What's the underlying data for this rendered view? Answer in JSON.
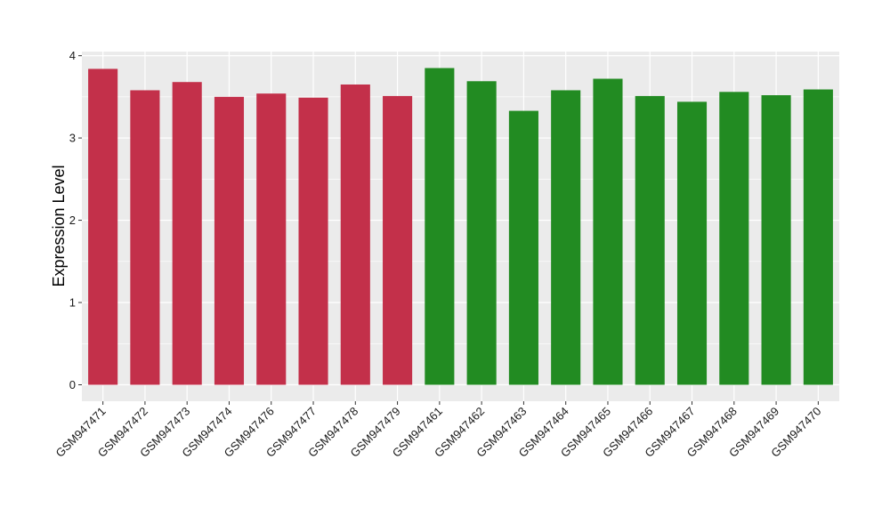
{
  "chart_data": {
    "type": "bar",
    "title": "",
    "xlabel": "",
    "ylabel": "Expression Level",
    "ylim": [
      -0.2,
      4.05
    ],
    "yticks": [
      0,
      1,
      2,
      3,
      4
    ],
    "grid": true,
    "legend": "none",
    "categories": [
      "GSM947471",
      "GSM947472",
      "GSM947473",
      "GSM947474",
      "GSM947476",
      "GSM947477",
      "GSM947478",
      "GSM947479",
      "GSM947461",
      "GSM947462",
      "GSM947463",
      "GSM947464",
      "GSM947465",
      "GSM947466",
      "GSM947467",
      "GSM947468",
      "GSM947469",
      "GSM947470"
    ],
    "values": [
      3.84,
      3.58,
      3.68,
      3.5,
      3.54,
      3.49,
      3.65,
      3.51,
      3.85,
      3.69,
      3.33,
      3.58,
      3.72,
      3.51,
      3.44,
      3.56,
      3.52,
      3.59
    ],
    "bar_colors": [
      "#C3304A",
      "#C3304A",
      "#C3304A",
      "#C3304A",
      "#C3304A",
      "#C3304A",
      "#C3304A",
      "#C3304A",
      "#228B22",
      "#228B22",
      "#228B22",
      "#228B22",
      "#228B22",
      "#228B22",
      "#228B22",
      "#228B22",
      "#228B22",
      "#228B22"
    ],
    "panel_background": "#EBEBEB",
    "grid_color": "#FFFFFF"
  }
}
